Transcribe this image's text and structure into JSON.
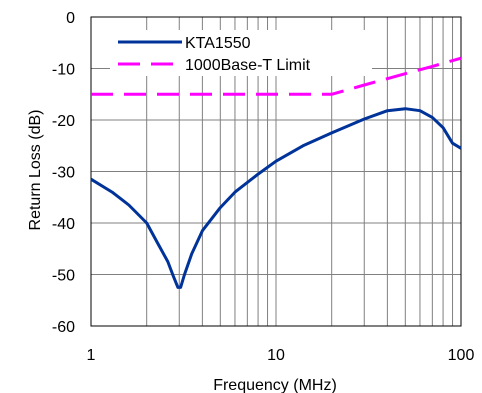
{
  "chart_data": {
    "type": "line",
    "xlabel": "Frequency (MHz)",
    "ylabel": "Return Loss (dB)",
    "xscale": "log",
    "xlim": [
      1,
      100
    ],
    "ylim": [
      -60,
      0
    ],
    "xticks": [
      "1",
      "10",
      "100"
    ],
    "yticks": [
      "0",
      "-10",
      "-20",
      "-30",
      "-40",
      "-50",
      "-60"
    ],
    "grid": true,
    "legend": "top-left",
    "series": [
      {
        "name": "KTA1550",
        "color": "#003399",
        "style": "solid",
        "x": [
          1,
          1.3,
          1.6,
          2,
          2.3,
          2.6,
          2.8,
          2.95,
          3.05,
          3.2,
          3.5,
          4,
          5,
          6,
          8,
          10,
          14,
          20,
          30,
          40,
          50,
          60,
          70,
          80,
          90,
          100
        ],
        "y": [
          -31.5,
          -34,
          -36.5,
          -40,
          -44,
          -47.5,
          -50.5,
          -52.5,
          -52.5,
          -50,
          -46,
          -41.5,
          -37,
          -34,
          -30.5,
          -28,
          -25,
          -22.5,
          -19.8,
          -18.2,
          -17.8,
          -18.2,
          -19.5,
          -21.5,
          -24.5,
          -25.5
        ]
      },
      {
        "name": "1000Base-T Limit",
        "color": "#ff00ff",
        "style": "dashed",
        "x": [
          1,
          20,
          30,
          50,
          70,
          100
        ],
        "y": [
          -15,
          -15,
          -13.2,
          -11.0,
          -9.6,
          -8.0
        ]
      }
    ]
  }
}
